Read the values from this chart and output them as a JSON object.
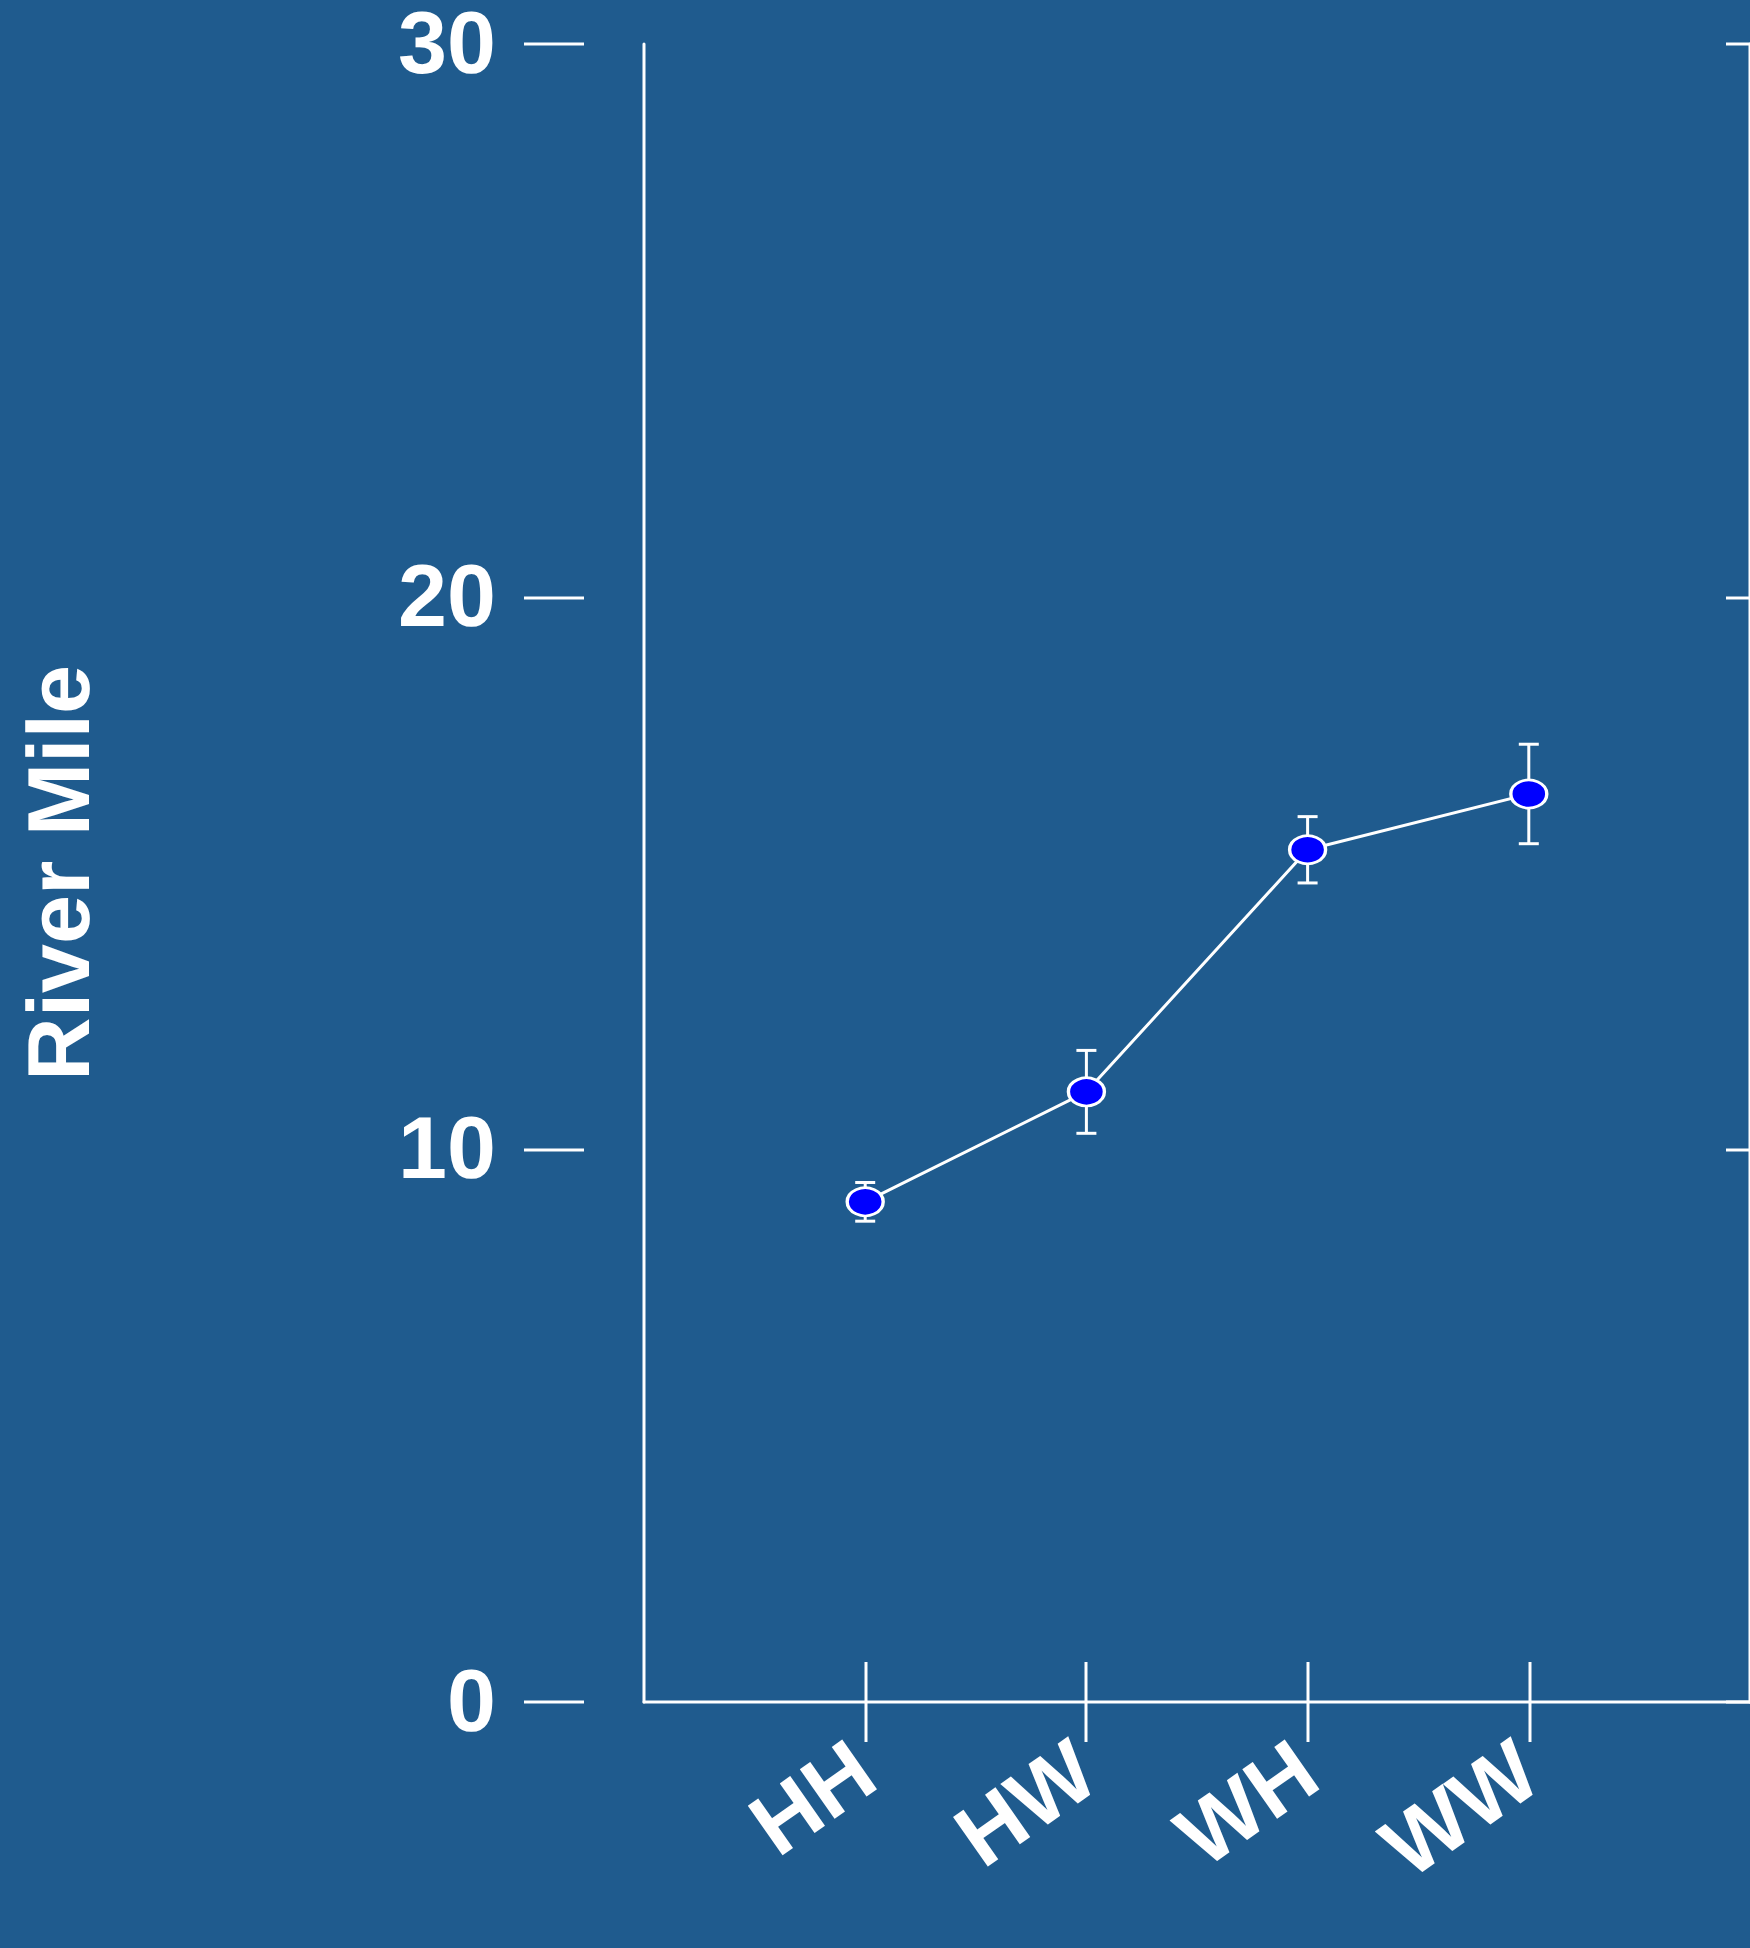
{
  "chart_data": {
    "type": "line",
    "ylabel": "River Mile",
    "categories": [
      "HH",
      "HW",
      "WH",
      "WW"
    ],
    "series": [
      {
        "color": "#0000ff",
        "values": [
          9.05,
          11.04,
          15.42,
          16.43
        ],
        "errors": [
          0.35,
          0.75,
          0.6,
          0.9
        ]
      }
    ],
    "ylim": [
      0,
      30
    ],
    "yticks": [
      0,
      10,
      20,
      30
    ],
    "grid": false,
    "marker": "circle",
    "line_style": "solid"
  }
}
